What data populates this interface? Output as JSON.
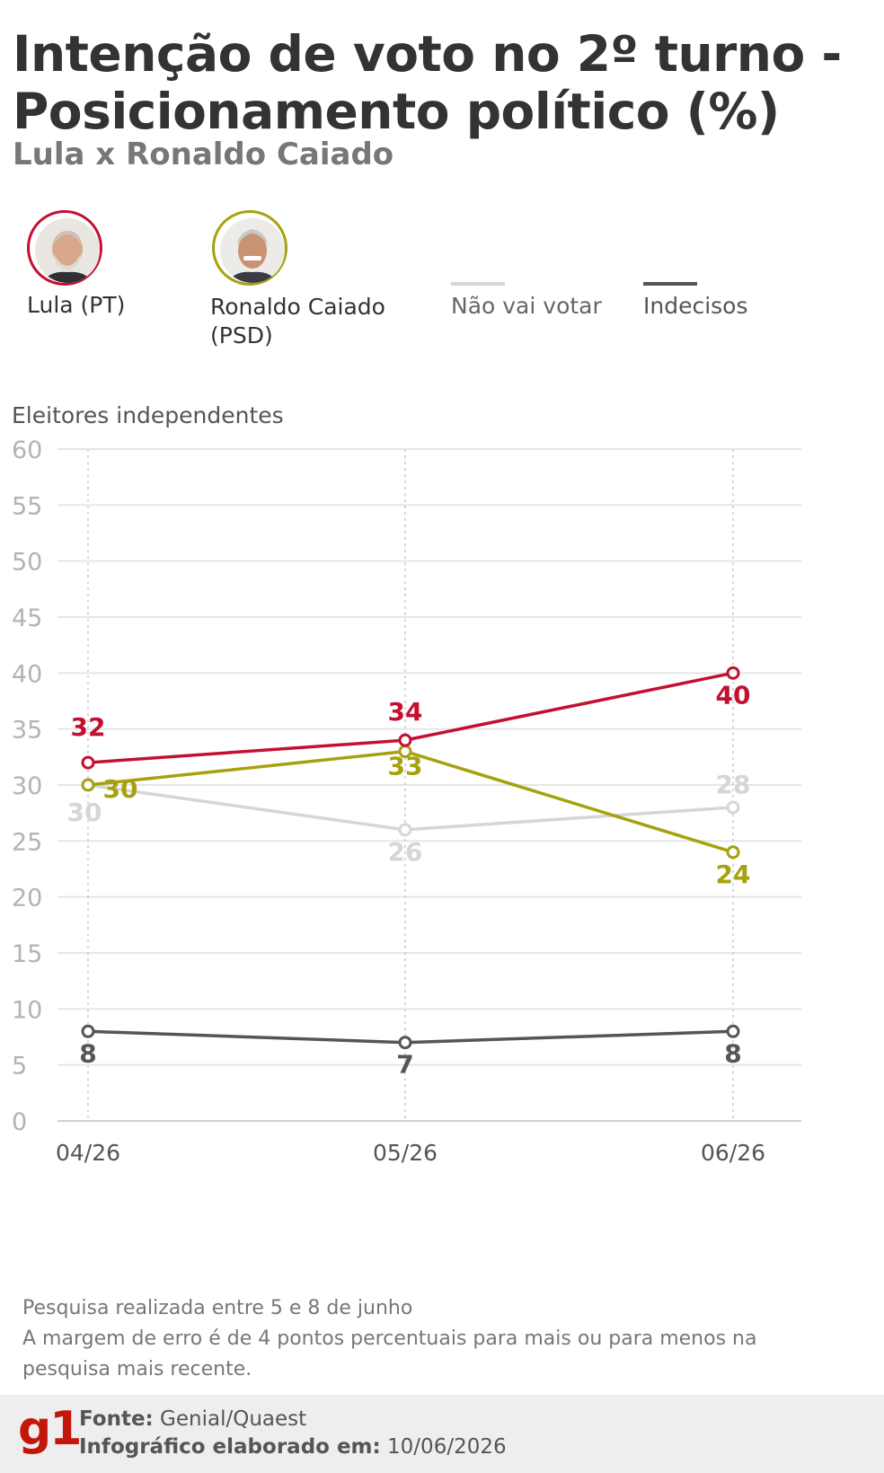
{
  "header": {
    "title": "Intenção de voto no 2º turno - Posicionamento político (%)",
    "subtitle": "Lula x Ronaldo Caiado"
  },
  "legend": {
    "lula": {
      "line1": "Lula (PT)",
      "color": "#c4102f"
    },
    "caiado": {
      "line1": "Ronaldo Caiado",
      "line2": "(PSD)",
      "color": "#a7a10f"
    },
    "nao_vai_votar": {
      "label": "Não vai votar",
      "color": "#d6d6d6"
    },
    "indecisos": {
      "label": "Indecisos",
      "color": "#555555"
    }
  },
  "chart_label": "Eleitores independentes",
  "chart_data": {
    "type": "line",
    "categories": [
      "04/26",
      "05/26",
      "06/26"
    ],
    "ylim": [
      0,
      60
    ],
    "yticks": [
      0,
      5,
      10,
      15,
      20,
      25,
      30,
      35,
      40,
      45,
      50,
      55,
      60
    ],
    "grid": true,
    "series": [
      {
        "name": "Não vai votar",
        "color": "#d6d6d6",
        "values": [
          30,
          26,
          28
        ]
      },
      {
        "name": "Indecisos",
        "color": "#555555",
        "values": [
          8,
          7,
          8
        ]
      },
      {
        "name": "Ronaldo Caiado (PSD)",
        "color": "#a7a10f",
        "values": [
          30,
          33,
          24
        ]
      },
      {
        "name": "Lula (PT)",
        "color": "#c4102f",
        "values": [
          32,
          34,
          40
        ]
      }
    ]
  },
  "notes": {
    "line1": "Pesquisa realizada entre 5 e 8 de junho",
    "line2": "A margem de erro é de 4 pontos percentuais para mais ou para menos na",
    "line3": "pesquisa mais recente."
  },
  "footer": {
    "logo": "g1",
    "fonte_label": "Fonte:",
    "fonte_value": " Genial/Quaest",
    "data_label": "Infográfico elaborado em:",
    "data_value": " 10/06/2026"
  }
}
